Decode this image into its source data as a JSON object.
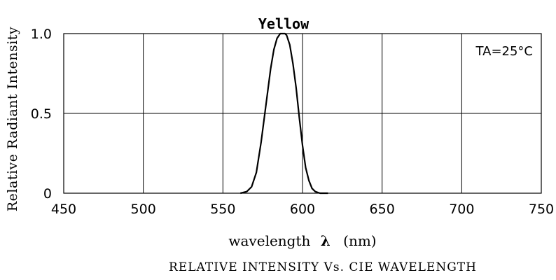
{
  "chart_data": {
    "type": "line",
    "title": "Yellow",
    "xlabel": "wavelength",
    "xlabel_symbol": "λ",
    "xlabel_unit": "(nm)",
    "ylabel": "Relative Radiant Intensity",
    "caption": "RELATIVE INTENSITY Vs. CIE WAVELENGTH",
    "annotation": "TA=25°C",
    "xlim": [
      450,
      750
    ],
    "ylim": [
      0,
      1.0
    ],
    "xticks": [
      450,
      500,
      550,
      600,
      650,
      700,
      750
    ],
    "xtick_labels": [
      "450",
      "500",
      "550",
      "600",
      "650",
      "700",
      "750"
    ],
    "yticks": [
      0,
      0.5,
      1.0
    ],
    "ytick_labels": [
      "0",
      "0.5",
      "1.0"
    ],
    "grid": true,
    "series": [
      {
        "x": [
          561,
          565,
          568,
          571,
          574,
          577,
          580,
          582,
          584,
          586,
          588,
          589,
          590,
          592,
          594,
          596,
          598,
          600,
          602,
          604,
          606,
          608,
          611,
          614,
          616
        ],
        "y": [
          0.0,
          0.01,
          0.04,
          0.13,
          0.32,
          0.55,
          0.78,
          0.9,
          0.97,
          1.0,
          1.0,
          1.0,
          0.99,
          0.93,
          0.81,
          0.66,
          0.47,
          0.3,
          0.16,
          0.08,
          0.03,
          0.01,
          0.0,
          0.0,
          0.0
        ]
      }
    ]
  }
}
